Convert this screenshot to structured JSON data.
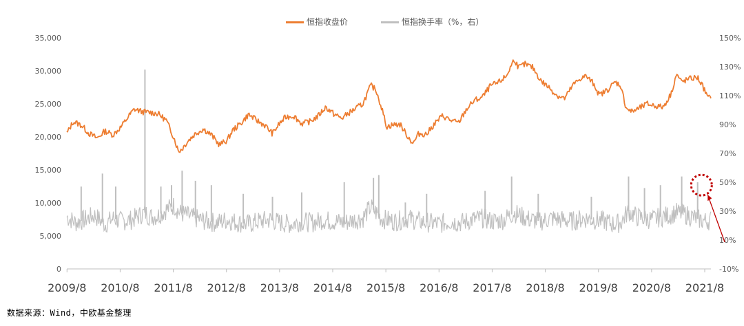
{
  "chart_data": {
    "type": "line",
    "title": "",
    "source": "数据来源：Wind，中欧基金整理",
    "legend": {
      "placement": "top-center",
      "entries": [
        "恒指收盘价",
        "恒指换手率（%，右）"
      ]
    },
    "colors": {
      "close": "#ED7D31",
      "turnover": "#BFBFBF",
      "annotation": "#C00000",
      "axis": "#595959"
    },
    "x_axis": {
      "ticks": [
        "2009/8",
        "2010/8",
        "2011/8",
        "2012/8",
        "2013/8",
        "2014/8",
        "2015/8",
        "2016/8",
        "2017/8",
        "2018/8",
        "2019/8",
        "2020/8",
        "2021/8"
      ],
      "range": [
        2009.58,
        2021.7
      ]
    },
    "y_left": {
      "ticks": [
        "0",
        "5,000",
        "10,000",
        "15,000",
        "20,000",
        "25,000",
        "30,000",
        "35,000"
      ],
      "range": [
        0,
        35000
      ]
    },
    "y_right": {
      "ticks": [
        "-10%",
        "10%",
        "30%",
        "50%",
        "70%",
        "90%",
        "110%",
        "130%",
        "150%"
      ],
      "range": [
        -10,
        150
      ]
    },
    "series": [
      {
        "name": "恒指收盘价",
        "axis": "left",
        "x": [
          2009.58,
          2009.7,
          2009.85,
          2010.0,
          2010.15,
          2010.3,
          2010.45,
          2010.6,
          2010.75,
          2010.85,
          2011.0,
          2011.15,
          2011.3,
          2011.45,
          2011.6,
          2011.68,
          2011.75,
          2011.85,
          2012.0,
          2012.15,
          2012.3,
          2012.45,
          2012.6,
          2012.7,
          2012.85,
          2013.0,
          2013.15,
          2013.3,
          2013.45,
          2013.58,
          2013.7,
          2013.85,
          2014.0,
          2014.15,
          2014.3,
          2014.45,
          2014.6,
          2014.75,
          2014.9,
          2015.0,
          2015.15,
          2015.3,
          2015.4,
          2015.5,
          2015.6,
          2015.7,
          2015.85,
          2016.0,
          2016.1,
          2016.2,
          2016.35,
          2016.5,
          2016.65,
          2016.8,
          2016.95,
          2017.1,
          2017.25,
          2017.4,
          2017.55,
          2017.7,
          2017.85,
          2018.0,
          2018.08,
          2018.2,
          2018.35,
          2018.5,
          2018.65,
          2018.8,
          2018.95,
          2019.1,
          2019.25,
          2019.35,
          2019.5,
          2019.6,
          2019.75,
          2019.9,
          2020.0,
          2020.1,
          2020.2,
          2020.35,
          2020.5,
          2020.65,
          2020.8,
          2020.95,
          2021.05,
          2021.15,
          2021.3,
          2021.45,
          2021.55,
          2021.65,
          2021.7
        ],
        "y": [
          20500,
          22300,
          21800,
          20500,
          19800,
          20900,
          20300,
          21500,
          23200,
          24200,
          23800,
          23700,
          23500,
          22500,
          19800,
          17800,
          18200,
          19300,
          20500,
          21200,
          20300,
          18800,
          19500,
          21000,
          22000,
          23400,
          22500,
          21800,
          20500,
          22000,
          23000,
          23200,
          22000,
          22300,
          23100,
          24500,
          23500,
          22800,
          23700,
          24200,
          25000,
          27800,
          27100,
          24500,
          21500,
          21800,
          21900,
          20000,
          19000,
          20500,
          20400,
          22000,
          23200,
          22500,
          22100,
          24200,
          25500,
          26000,
          27700,
          28200,
          29200,
          31800,
          30500,
          31000,
          30500,
          28500,
          27500,
          26300,
          25800,
          27800,
          28900,
          29200,
          28000,
          26300,
          27100,
          28300,
          27800,
          24500,
          23800,
          24300,
          25000,
          24700,
          24500,
          26500,
          29500,
          28300,
          28800,
          29000,
          27600,
          25800,
          26200
        ]
      },
      {
        "name": "恒指换手率（%，右）",
        "axis": "right",
        "x": [
          2009.58,
          2009.75,
          2009.9,
          2010.1,
          2010.3,
          2010.45,
          2010.6,
          2010.8,
          2010.95,
          2011.05,
          2011.15,
          2011.3,
          2011.45,
          2011.6,
          2011.7,
          2011.85,
          2012.0,
          2012.2,
          2012.4,
          2012.6,
          2012.8,
          2013.0,
          2013.2,
          2013.4,
          2013.6,
          2013.8,
          2014.0,
          2014.2,
          2014.4,
          2014.6,
          2014.8,
          2015.0,
          2015.15,
          2015.3,
          2015.4,
          2015.5,
          2015.6,
          2015.75,
          2015.9,
          2016.0,
          2016.2,
          2016.4,
          2016.6,
          2016.8,
          2017.0,
          2017.2,
          2017.4,
          2017.6,
          2017.8,
          2018.0,
          2018.1,
          2018.3,
          2018.5,
          2018.7,
          2018.9,
          2019.1,
          2019.3,
          2019.5,
          2019.7,
          2019.85,
          2020.0,
          2020.15,
          2020.3,
          2020.45,
          2020.6,
          2020.75,
          2020.9,
          2021.05,
          2021.2,
          2021.35,
          2021.5,
          2021.6,
          2021.7
        ],
        "y": [
          26,
          22,
          24,
          27,
          21,
          25,
          23,
          24,
          27,
          29,
          26,
          27,
          31,
          34,
          29,
          27,
          25,
          23,
          22,
          24,
          22,
          21,
          23,
          24,
          22,
          21,
          23,
          22,
          24,
          23,
          22,
          24,
          25,
          33,
          29,
          25,
          24,
          23,
          24,
          25,
          23,
          22,
          21,
          23,
          22,
          24,
          25,
          23,
          24,
          29,
          27,
          24,
          23,
          25,
          24,
          23,
          25,
          24,
          23,
          21,
          22,
          30,
          26,
          25,
          24,
          26,
          27,
          29,
          28,
          26,
          24,
          23,
          24
        ]
      }
    ],
    "spike_markers": [
      {
        "x": 2009.85,
        "y": 47
      },
      {
        "x": 2010.25,
        "y": 56
      },
      {
        "x": 2010.5,
        "y": 47
      },
      {
        "x": 2011.05,
        "y": 128
      },
      {
        "x": 2011.35,
        "y": 47
      },
      {
        "x": 2011.55,
        "y": 48
      },
      {
        "x": 2011.75,
        "y": 58
      },
      {
        "x": 2012.0,
        "y": 51
      },
      {
        "x": 2012.3,
        "y": 48
      },
      {
        "x": 2012.9,
        "y": 42
      },
      {
        "x": 2013.45,
        "y": 40
      },
      {
        "x": 2014.0,
        "y": 43
      },
      {
        "x": 2014.8,
        "y": 50
      },
      {
        "x": 2015.35,
        "y": 53
      },
      {
        "x": 2015.45,
        "y": 55
      },
      {
        "x": 2015.95,
        "y": 36
      },
      {
        "x": 2016.35,
        "y": 42
      },
      {
        "x": 2017.45,
        "y": 44
      },
      {
        "x": 2017.95,
        "y": 54
      },
      {
        "x": 2018.45,
        "y": 42
      },
      {
        "x": 2019.45,
        "y": 40
      },
      {
        "x": 2020.15,
        "y": 54
      },
      {
        "x": 2020.45,
        "y": 46
      },
      {
        "x": 2020.75,
        "y": 48
      },
      {
        "x": 2021.15,
        "y": 54
      },
      {
        "x": 2021.45,
        "y": 50
      }
    ],
    "annotation": {
      "type": "dotted-circle-with-arrow",
      "x": 2021.6,
      "y": 48
    }
  }
}
